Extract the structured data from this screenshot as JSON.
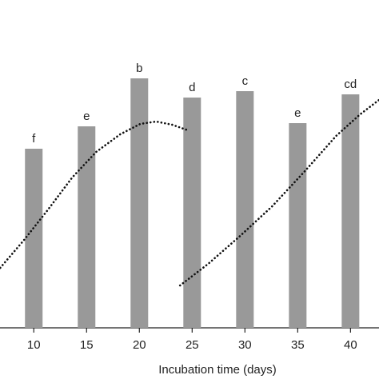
{
  "chart_data": {
    "type": "bar",
    "x_label": "Incubation time (days)",
    "x": [
      10,
      15,
      20,
      25,
      30,
      35,
      40
    ],
    "values": [
      56,
      63,
      78,
      72,
      74,
      64,
      73
    ],
    "annotations": [
      "f",
      "e",
      "b",
      "d",
      "c",
      "e",
      "cd"
    ],
    "color": "#999999",
    "xlim": [
      6.8,
      42.7
    ],
    "xticks": [
      10,
      15,
      20,
      25,
      30,
      35,
      40
    ],
    "ylim": [
      0,
      100
    ],
    "lines": [
      {
        "color": "#111111",
        "x": [
          6.82,
          9.09,
          11.36,
          13.64,
          15.91,
          18.18,
          20.08,
          21.59,
          23.11,
          24.62
        ],
        "values": [
          18.75,
          27.5,
          37,
          47,
          55,
          60.5,
          63.75,
          64.5,
          63.5,
          61.75
        ]
      },
      {
        "color": "#111111",
        "x": [
          23.86,
          26.52,
          29.55,
          32.58,
          35.61,
          38.64,
          40.91,
          42.7
        ],
        "values": [
          13.25,
          20,
          28.75,
          38,
          48.75,
          60,
          66.75,
          71.25
        ]
      }
    ]
  }
}
